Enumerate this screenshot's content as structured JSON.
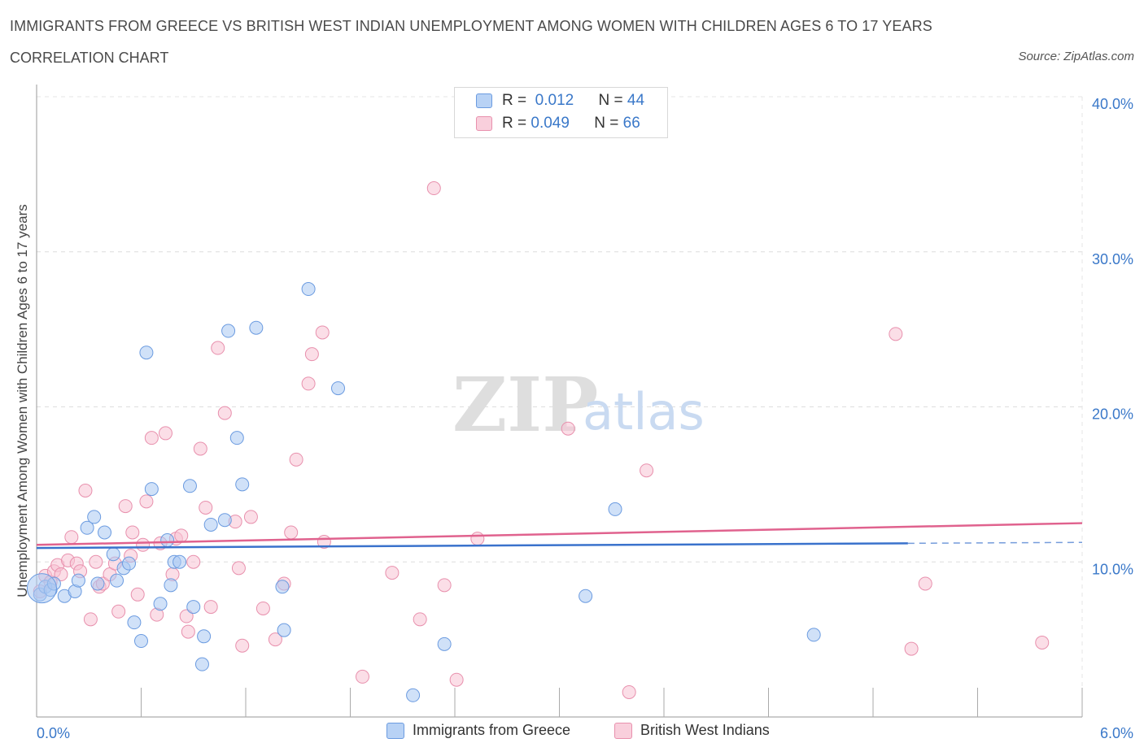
{
  "header": {
    "title": "IMMIGRANTS FROM GREECE VS BRITISH WEST INDIAN UNEMPLOYMENT AMONG WOMEN WITH CHILDREN AGES 6 TO 17 YEARS",
    "subtitle": "CORRELATION CHART",
    "source": "Source: ZipAtlas.com"
  },
  "watermark": {
    "zip": "ZIP",
    "atlas": "atlas"
  },
  "legend_stats": [
    {
      "r_label": "R =",
      "r_value": "0.012",
      "n_label": "N =",
      "n_value": "44"
    },
    {
      "r_label": "R =",
      "r_value": "0.049",
      "n_label": "N =",
      "n_value": "66"
    }
  ],
  "colors": {
    "greece_fill": "#a9c8f2",
    "greece_stroke": "#6b9be0",
    "greece_line": "#3a72cc",
    "bwi_fill": "#f7c3d3",
    "bwi_stroke": "#e890ad",
    "bwi_line": "#e0628e",
    "axis_text": "#3a78c9",
    "grid": "#dddddd"
  },
  "chart_data": {
    "type": "scatter",
    "title": "IMMIGRANTS FROM GREECE VS BRITISH WEST INDIAN UNEMPLOYMENT AMONG WOMEN WITH CHILDREN AGES 6 TO 17 YEARS",
    "xlabel": "",
    "ylabel": "Unemployment Among Women with Children Ages 6 to 17 years",
    "xlim": [
      0,
      6
    ],
    "ylim": [
      0,
      40
    ],
    "x_tick_labels": [
      "0.0%",
      "6.0%"
    ],
    "y_tick_labels": [
      "10.0%",
      "20.0%",
      "30.0%",
      "40.0%"
    ],
    "y_ticks": [
      10,
      20,
      30,
      40
    ],
    "grid": true,
    "legend_position": "top-center",
    "series": [
      {
        "name": "Immigrants from Greece",
        "R": 0.012,
        "N": 44,
        "trend": {
          "x": [
            0,
            5
          ],
          "y": [
            10.9,
            11.2
          ],
          "dashed_extension_to_x": 6
        },
        "points": [
          [
            0.02,
            7.9
          ],
          [
            0.05,
            8.4
          ],
          [
            0.08,
            8.2
          ],
          [
            0.1,
            8.6
          ],
          [
            0.16,
            7.8
          ],
          [
            0.22,
            8.1
          ],
          [
            0.24,
            8.8
          ],
          [
            0.29,
            12.2
          ],
          [
            0.33,
            12.9
          ],
          [
            0.35,
            8.6
          ],
          [
            0.39,
            11.9
          ],
          [
            0.44,
            10.5
          ],
          [
            0.46,
            8.8
          ],
          [
            0.5,
            9.6
          ],
          [
            0.53,
            9.9
          ],
          [
            0.56,
            6.1
          ],
          [
            0.6,
            4.9
          ],
          [
            0.63,
            23.5
          ],
          [
            0.66,
            14.7
          ],
          [
            0.71,
            7.3
          ],
          [
            0.75,
            11.4
          ],
          [
            0.77,
            8.5
          ],
          [
            0.79,
            10.0
          ],
          [
            0.82,
            10.0
          ],
          [
            0.88,
            14.9
          ],
          [
            0.9,
            7.1
          ],
          [
            0.96,
            5.2
          ],
          [
            0.95,
            3.4
          ],
          [
            1.0,
            12.4
          ],
          [
            1.08,
            12.7
          ],
          [
            1.1,
            24.9
          ],
          [
            1.15,
            18.0
          ],
          [
            1.18,
            15.0
          ],
          [
            1.26,
            25.1
          ],
          [
            1.41,
            8.4
          ],
          [
            1.42,
            5.6
          ],
          [
            1.56,
            27.6
          ],
          [
            1.73,
            21.2
          ],
          [
            2.16,
            1.4
          ],
          [
            2.34,
            4.7
          ],
          [
            3.15,
            7.8
          ],
          [
            3.32,
            13.4
          ],
          [
            4.46,
            5.3
          ],
          [
            0.03,
            8.3
          ]
        ]
      },
      {
        "name": "British West Indians",
        "R": 0.049,
        "N": 66,
        "trend": {
          "x": [
            0,
            6
          ],
          "y": [
            11.1,
            12.5
          ]
        },
        "points": [
          [
            0.02,
            8.1
          ],
          [
            0.05,
            9.1
          ],
          [
            0.08,
            8.7
          ],
          [
            0.1,
            9.4
          ],
          [
            0.12,
            9.8
          ],
          [
            0.14,
            9.2
          ],
          [
            0.18,
            10.1
          ],
          [
            0.2,
            11.6
          ],
          [
            0.23,
            9.9
          ],
          [
            0.25,
            9.4
          ],
          [
            0.28,
            14.6
          ],
          [
            0.31,
            6.3
          ],
          [
            0.34,
            10.0
          ],
          [
            0.36,
            8.4
          ],
          [
            0.38,
            8.6
          ],
          [
            0.42,
            9.2
          ],
          [
            0.45,
            9.9
          ],
          [
            0.47,
            6.8
          ],
          [
            0.51,
            13.6
          ],
          [
            0.54,
            10.4
          ],
          [
            0.55,
            11.9
          ],
          [
            0.58,
            7.9
          ],
          [
            0.61,
            11.1
          ],
          [
            0.63,
            13.9
          ],
          [
            0.66,
            18.0
          ],
          [
            0.69,
            6.6
          ],
          [
            0.71,
            11.2
          ],
          [
            0.74,
            18.3
          ],
          [
            0.78,
            9.2
          ],
          [
            0.8,
            11.5
          ],
          [
            0.83,
            11.7
          ],
          [
            0.86,
            6.5
          ],
          [
            0.87,
            5.5
          ],
          [
            0.9,
            10.0
          ],
          [
            0.94,
            17.3
          ],
          [
            0.97,
            13.5
          ],
          [
            1.0,
            7.1
          ],
          [
            1.04,
            23.8
          ],
          [
            1.08,
            19.6
          ],
          [
            1.14,
            12.6
          ],
          [
            1.16,
            9.6
          ],
          [
            1.18,
            4.6
          ],
          [
            1.23,
            12.9
          ],
          [
            1.3,
            7.0
          ],
          [
            1.37,
            5.0
          ],
          [
            1.42,
            8.6
          ],
          [
            1.46,
            11.9
          ],
          [
            1.49,
            16.6
          ],
          [
            1.56,
            21.5
          ],
          [
            1.58,
            23.4
          ],
          [
            1.64,
            24.8
          ],
          [
            1.65,
            11.3
          ],
          [
            1.87,
            2.6
          ],
          [
            2.04,
            9.3
          ],
          [
            2.2,
            6.3
          ],
          [
            2.28,
            34.1
          ],
          [
            2.34,
            8.5
          ],
          [
            2.41,
            2.4
          ],
          [
            2.53,
            11.5
          ],
          [
            3.05,
            18.6
          ],
          [
            3.4,
            1.6
          ],
          [
            3.5,
            15.9
          ],
          [
            4.93,
            24.7
          ],
          [
            5.02,
            4.4
          ],
          [
            5.1,
            8.6
          ],
          [
            5.77,
            4.8
          ]
        ]
      }
    ]
  },
  "bottom_legend": {
    "greece": "Immigrants from Greece",
    "bwi": "British West Indians"
  }
}
